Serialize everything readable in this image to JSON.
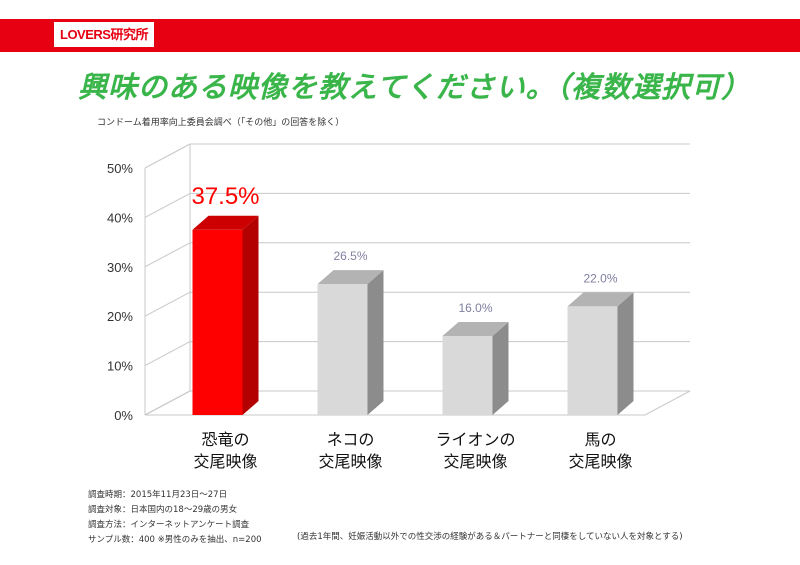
{
  "brand": "LOVERS研究所",
  "colors": {
    "brand_red": "#e60012",
    "title_green": "#39b54a",
    "highlight_bar": "#ff0000",
    "bar_gray": "#d9d9d9",
    "label_gray": "#7f7fa0"
  },
  "title": "興味のある映像を教えてください。（複数選択可）",
  "source": "コンドーム着用率向上委員会調べ（「その他」の回答を除く）",
  "chart_data": {
    "type": "bar",
    "categories": [
      "恐竜の\n交尾映像",
      "ネコの\n交尾映像",
      "ライオンの\n交尾映像",
      "馬の\n交尾映像"
    ],
    "values": [
      37.5,
      26.5,
      16.0,
      22.0
    ],
    "value_labels": [
      "37.5%",
      "26.5%",
      "16.0%",
      "22.0%"
    ],
    "y_ticks": [
      "0%",
      "10%",
      "20%",
      "30%",
      "40%",
      "50%"
    ],
    "ylim": [
      0,
      50
    ],
    "highlight_index": 0,
    "grid": true,
    "style": "3d"
  },
  "survey_notes": [
    "調査時期：2015年11月23日〜27日",
    "調査対象：日本国内の18〜29歳の男女",
    "調査方法：インターネットアンケート調査",
    "サンプル数：400 ※男性のみを抽出、n=200"
  ],
  "footnote": "(過去1年間、妊娠活動以外での性交渉の経験がある＆パートナーと同棲をしていない人を対象とする)"
}
